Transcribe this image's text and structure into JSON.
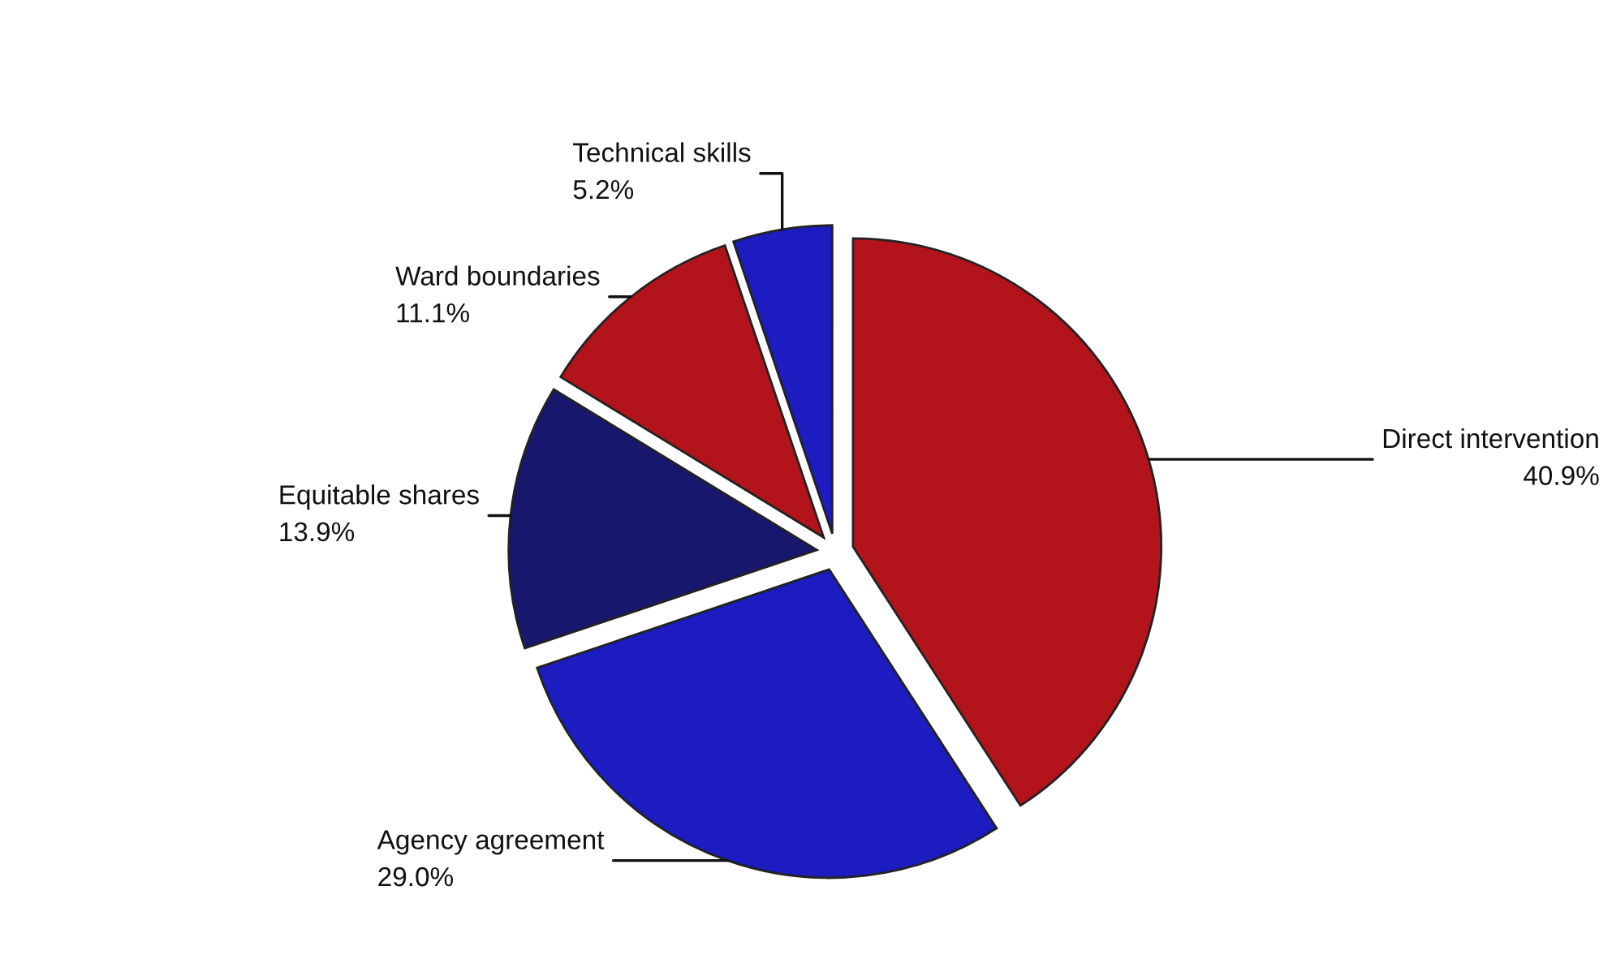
{
  "chart_data": {
    "type": "pie",
    "categories": [
      "Direct intervention",
      "Agency agreement",
      "Equitable shares",
      "Ward boundaries",
      "Technical skills"
    ],
    "values": [
      40.9,
      29.0,
      13.9,
      11.1,
      5.2
    ],
    "value_labels": [
      "40.9%",
      "29.0%",
      "13.9%",
      "11.1%",
      "5.2%"
    ],
    "colors": [
      "#b3141c",
      "#1c1cc0",
      "#17176e",
      "#b3141c",
      "#1c1cc0"
    ]
  }
}
